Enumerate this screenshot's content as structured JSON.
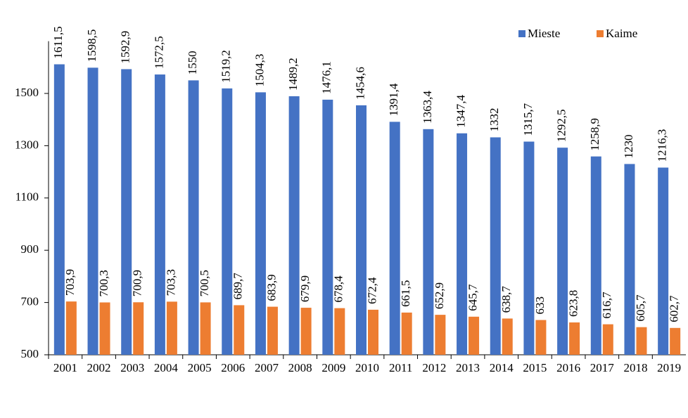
{
  "chart_data": {
    "type": "bar",
    "categories": [
      "2001",
      "2002",
      "2003",
      "2004",
      "2005",
      "2006",
      "2007",
      "2008",
      "2009",
      "2010",
      "2011",
      "2012",
      "2013",
      "2014",
      "2015",
      "2016",
      "2017",
      "2018",
      "2019"
    ],
    "series": [
      {
        "name": "Mieste",
        "color": "#4472c4",
        "values": [
          1611.5,
          1598.5,
          1592.9,
          1572.5,
          1550,
          1519.2,
          1504.3,
          1489.2,
          1476.1,
          1454.6,
          1391.4,
          1363.4,
          1347.4,
          1332,
          1315.7,
          1292.5,
          1258.9,
          1230,
          1216.3
        ],
        "value_labels": [
          "1611,5",
          "1598,5",
          "1592,9",
          "1572,5",
          "1550",
          "1519,2",
          "1504,3",
          "1489,2",
          "1476,1",
          "1454,6",
          "1391,4",
          "1363,4",
          "1347,4",
          "1332",
          "1315,7",
          "1292,5",
          "1258,9",
          "1230",
          "1216,3"
        ]
      },
      {
        "name": "Kaime",
        "color": "#ed7d31",
        "values": [
          703.9,
          700.3,
          700.9,
          703.3,
          700.5,
          689.7,
          683.9,
          679.9,
          678.4,
          672.4,
          661.5,
          652.9,
          645.7,
          638.7,
          633,
          623.8,
          616.7,
          605.7,
          602.7
        ],
        "value_labels": [
          "703,9",
          "700,3",
          "700,9",
          "703,3",
          "700,5",
          "689,7",
          "683,9",
          "679,9",
          "678,4",
          "672,4",
          "661,5",
          "652,9",
          "645,7",
          "638,7",
          "633",
          "623,8",
          "616,7",
          "605,7",
          "602,7"
        ]
      }
    ],
    "ylim": [
      500,
      1700
    ],
    "yticks": [
      500,
      700,
      900,
      1100,
      1300,
      1500
    ],
    "grid": false,
    "legend": "top-right"
  }
}
